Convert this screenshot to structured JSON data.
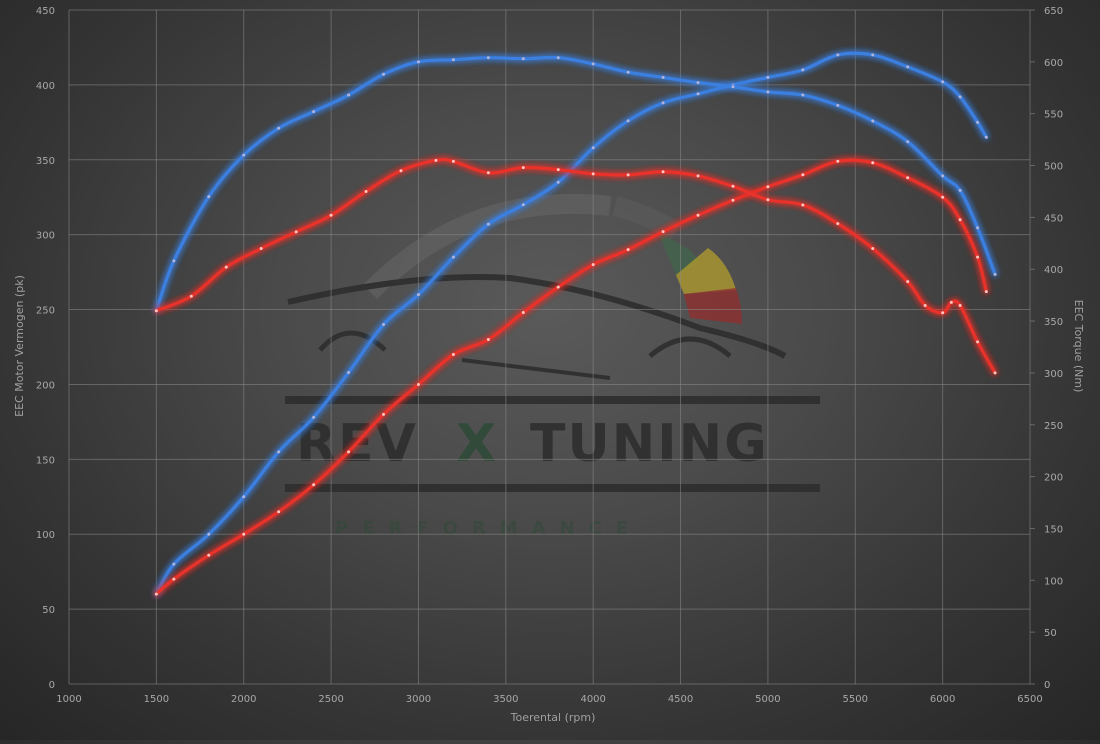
{
  "chart_data": {
    "type": "line",
    "title": "",
    "xlabel": "Toerental (rpm)",
    "ylabel_left": "EEC Motor Vermogen (pk)",
    "ylabel_right": "EEC Torque (Nm)",
    "xlim": [
      1000,
      6500
    ],
    "ylim_left": [
      0,
      450
    ],
    "ylim_right": [
      0,
      650
    ],
    "x_ticks": [
      1000,
      1500,
      2000,
      2500,
      3000,
      3500,
      4000,
      4500,
      5000,
      5500,
      6000,
      6500
    ],
    "y_ticks_left": [
      0,
      50,
      100,
      150,
      200,
      250,
      300,
      350,
      400,
      450
    ],
    "y_ticks_right": [
      0,
      50,
      100,
      150,
      200,
      250,
      300,
      350,
      400,
      450,
      500,
      550,
      600,
      650
    ],
    "grid": true,
    "legend": "none",
    "series": [
      {
        "color": "#3b7fe0",
        "axis": "left",
        "points": [
          [
            1500,
            60
          ],
          [
            1600,
            80
          ],
          [
            1800,
            100
          ],
          [
            2000,
            125
          ],
          [
            2200,
            155
          ],
          [
            2400,
            178
          ],
          [
            2600,
            208
          ],
          [
            2800,
            240
          ],
          [
            3000,
            260
          ],
          [
            3200,
            285
          ],
          [
            3400,
            307
          ],
          [
            3600,
            320
          ],
          [
            3800,
            335
          ],
          [
            4000,
            358
          ],
          [
            4200,
            376
          ],
          [
            4400,
            388
          ],
          [
            4600,
            394
          ],
          [
            4800,
            400
          ],
          [
            5000,
            405
          ],
          [
            5200,
            410
          ],
          [
            5400,
            420
          ],
          [
            5600,
            420
          ],
          [
            5800,
            412
          ],
          [
            6000,
            402
          ],
          [
            6100,
            392
          ],
          [
            6200,
            375
          ],
          [
            6250,
            365
          ]
        ]
      },
      {
        "color": "#3b7fe0",
        "axis": "right",
        "points": [
          [
            1500,
            360
          ],
          [
            1600,
            408
          ],
          [
            1800,
            470
          ],
          [
            2000,
            510
          ],
          [
            2200,
            536
          ],
          [
            2400,
            552
          ],
          [
            2600,
            568
          ],
          [
            2800,
            588
          ],
          [
            3000,
            600
          ],
          [
            3200,
            602
          ],
          [
            3400,
            604
          ],
          [
            3600,
            603
          ],
          [
            3800,
            604
          ],
          [
            4000,
            598
          ],
          [
            4200,
            590
          ],
          [
            4400,
            585
          ],
          [
            4600,
            580
          ],
          [
            4800,
            576
          ],
          [
            5000,
            571
          ],
          [
            5200,
            568
          ],
          [
            5400,
            558
          ],
          [
            5600,
            543
          ],
          [
            5800,
            523
          ],
          [
            6000,
            490
          ],
          [
            6100,
            476
          ],
          [
            6200,
            440
          ],
          [
            6300,
            395
          ]
        ]
      },
      {
        "color": "#e8302a",
        "axis": "left",
        "points": [
          [
            1500,
            60
          ],
          [
            1600,
            70
          ],
          [
            1800,
            86
          ],
          [
            2000,
            100
          ],
          [
            2200,
            115
          ],
          [
            2400,
            133
          ],
          [
            2600,
            155
          ],
          [
            2800,
            180
          ],
          [
            3000,
            200
          ],
          [
            3200,
            220
          ],
          [
            3400,
            230
          ],
          [
            3600,
            248
          ],
          [
            3800,
            265
          ],
          [
            4000,
            280
          ],
          [
            4200,
            290
          ],
          [
            4400,
            302
          ],
          [
            4600,
            313
          ],
          [
            4800,
            323
          ],
          [
            5000,
            332
          ],
          [
            5200,
            340
          ],
          [
            5400,
            349
          ],
          [
            5600,
            348
          ],
          [
            5800,
            338
          ],
          [
            6000,
            325
          ],
          [
            6100,
            310
          ],
          [
            6200,
            285
          ],
          [
            6250,
            262
          ]
        ]
      },
      {
        "color": "#e8302a",
        "axis": "right",
        "points": [
          [
            1500,
            360
          ],
          [
            1700,
            374
          ],
          [
            1900,
            402
          ],
          [
            2100,
            420
          ],
          [
            2300,
            436
          ],
          [
            2500,
            452
          ],
          [
            2700,
            475
          ],
          [
            2900,
            495
          ],
          [
            3100,
            505
          ],
          [
            3200,
            504
          ],
          [
            3400,
            493
          ],
          [
            3600,
            498
          ],
          [
            3800,
            496
          ],
          [
            4000,
            492
          ],
          [
            4200,
            491
          ],
          [
            4400,
            494
          ],
          [
            4600,
            490
          ],
          [
            4800,
            480
          ],
          [
            5000,
            467
          ],
          [
            5200,
            462
          ],
          [
            5400,
            444
          ],
          [
            5600,
            420
          ],
          [
            5800,
            388
          ],
          [
            5900,
            365
          ],
          [
            6000,
            358
          ],
          [
            6050,
            368
          ],
          [
            6100,
            365
          ],
          [
            6200,
            330
          ],
          [
            6300,
            300
          ]
        ]
      }
    ]
  },
  "watermark": {
    "brand_left": "REV",
    "brand_mid": "X",
    "brand_right": "TUNING",
    "subtitle": "PERFORMANCE"
  }
}
